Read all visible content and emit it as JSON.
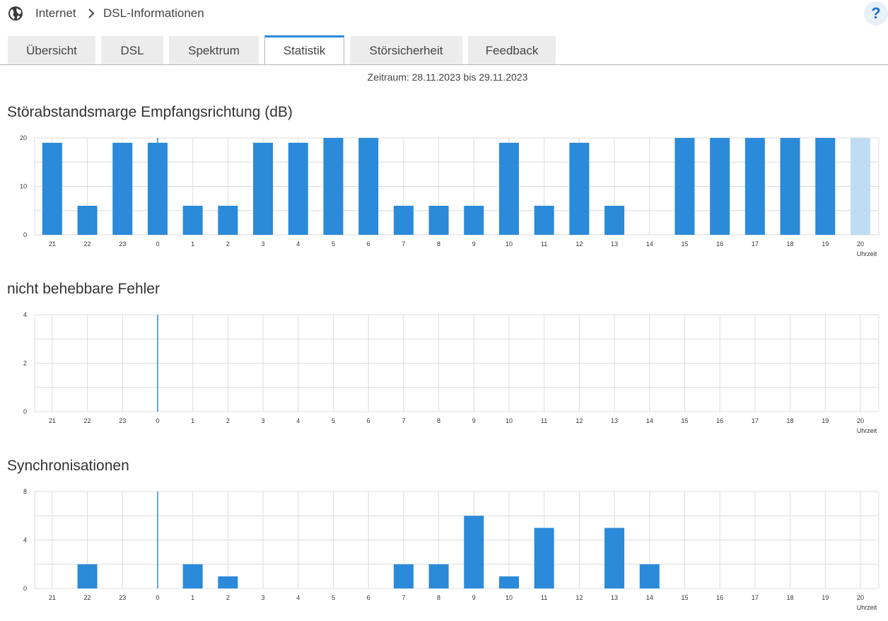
{
  "header": {
    "breadcrumb_home": "Internet",
    "breadcrumb_current": "DSL-Informationen",
    "help_label": "?"
  },
  "tabs": [
    {
      "label": "Übersicht",
      "active": false
    },
    {
      "label": "DSL",
      "active": false
    },
    {
      "label": "Spektrum",
      "active": false
    },
    {
      "label": "Statistik",
      "active": true
    },
    {
      "label": "Störsicherheit",
      "active": false
    },
    {
      "label": "Feedback",
      "active": false
    }
  ],
  "period": "Zeitraum: 28.11.2023 bis 29.11.2023",
  "colors": {
    "bar": "#2b8ad9",
    "bar_current": "#bfdcf2",
    "marker": "#2b8ad9",
    "grid": "#dcdcdc",
    "tab_accent": "#2b8ad9"
  },
  "chart_data": [
    {
      "type": "bar",
      "title": "Störabstandsmarge Empfangsrichtung (dB)",
      "xlabel": "Uhrzeit",
      "ylim": [
        0,
        20
      ],
      "yticks": [
        0,
        10,
        20
      ],
      "categories": [
        "21",
        "22",
        "23",
        "0",
        "1",
        "2",
        "3",
        "4",
        "5",
        "6",
        "7",
        "8",
        "9",
        "10",
        "11",
        "12",
        "13",
        "14",
        "15",
        "16",
        "17",
        "18",
        "19",
        "20"
      ],
      "values": [
        19,
        6,
        19,
        19,
        6,
        6,
        19,
        19,
        20,
        20,
        6,
        6,
        6,
        19,
        6,
        19,
        6,
        null,
        20,
        20,
        20,
        20,
        20,
        20
      ],
      "current_index": 23,
      "marker_category": "0",
      "grid": true
    },
    {
      "type": "bar",
      "title": "nicht behebbare Fehler",
      "xlabel": "Uhrzeit",
      "ylim": [
        0,
        4
      ],
      "yticks": [
        0,
        2,
        4
      ],
      "categories": [
        "21",
        "22",
        "23",
        "0",
        "1",
        "2",
        "3",
        "4",
        "5",
        "6",
        "7",
        "8",
        "9",
        "10",
        "11",
        "12",
        "13",
        "14",
        "15",
        "16",
        "17",
        "18",
        "19",
        "20"
      ],
      "values": [
        0,
        0,
        0,
        0,
        0,
        0,
        0,
        0,
        0,
        0,
        0,
        0,
        0,
        0,
        0,
        0,
        0,
        0,
        0,
        0,
        0,
        0,
        0,
        0
      ],
      "marker_category": "0",
      "grid": true
    },
    {
      "type": "bar",
      "title": "Synchronisationen",
      "xlabel": "Uhrzeit",
      "ylim": [
        0,
        8
      ],
      "yticks": [
        0,
        4,
        8
      ],
      "categories": [
        "21",
        "22",
        "23",
        "0",
        "1",
        "2",
        "3",
        "4",
        "5",
        "6",
        "7",
        "8",
        "9",
        "10",
        "11",
        "12",
        "13",
        "14",
        "15",
        "16",
        "17",
        "18",
        "19",
        "20"
      ],
      "values": [
        0,
        2,
        0,
        0,
        2,
        1,
        0,
        0,
        0,
        0,
        2,
        2,
        6,
        1,
        5,
        0,
        5,
        2,
        0,
        0,
        0,
        0,
        0,
        0
      ],
      "marker_category": "0",
      "grid": true
    }
  ]
}
